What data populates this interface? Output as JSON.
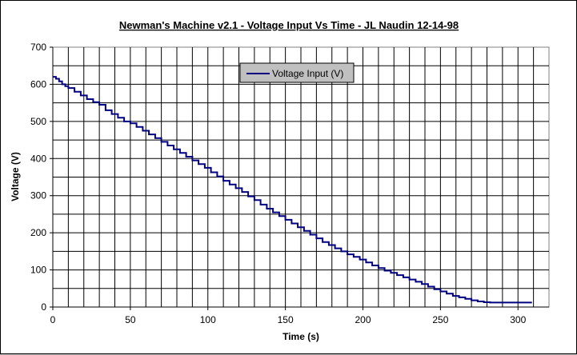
{
  "chart_data": {
    "type": "line",
    "title": "Newman's Machine v2.1 - Voltage Input Vs Time - JL Naudin      12-14-98",
    "xlabel": "Time (s)",
    "ylabel": "Voltage (V)",
    "xlim": [
      0,
      320
    ],
    "ylim": [
      0,
      700
    ],
    "x_major_ticks": [
      0,
      50,
      100,
      150,
      200,
      250,
      300
    ],
    "x_minor_step": 10,
    "y_ticks": [
      0,
      100,
      200,
      300,
      400,
      500,
      600,
      700
    ],
    "y_minor_step": 50,
    "grid": true,
    "legend_position": "top-center",
    "series": [
      {
        "name": "Voltage Input (V)",
        "color": "#000080",
        "x": [
          0,
          2,
          4,
          6,
          8,
          10,
          14,
          18,
          22,
          26,
          30,
          34,
          38,
          42,
          46,
          50,
          54,
          58,
          62,
          66,
          70,
          74,
          78,
          82,
          86,
          90,
          94,
          98,
          102,
          106,
          110,
          114,
          118,
          122,
          126,
          130,
          134,
          138,
          142,
          146,
          150,
          154,
          158,
          162,
          166,
          170,
          174,
          178,
          182,
          186,
          190,
          194,
          198,
          202,
          206,
          210,
          214,
          218,
          222,
          226,
          230,
          234,
          238,
          242,
          246,
          250,
          254,
          258,
          262,
          266,
          270,
          274,
          278,
          282,
          286,
          290,
          294,
          298,
          302,
          306,
          309
        ],
        "y": [
          620,
          615,
          608,
          600,
          595,
          590,
          580,
          570,
          560,
          552,
          545,
          530,
          520,
          510,
          500,
          495,
          485,
          475,
          465,
          455,
          445,
          435,
          425,
          415,
          405,
          395,
          385,
          375,
          363,
          352,
          340,
          330,
          320,
          310,
          298,
          288,
          276,
          265,
          255,
          245,
          235,
          225,
          215,
          205,
          195,
          185,
          175,
          167,
          158,
          150,
          142,
          135,
          128,
          120,
          112,
          105,
          98,
          92,
          86,
          80,
          74,
          68,
          62,
          55,
          48,
          42,
          36,
          30,
          26,
          22,
          18,
          15,
          13,
          12,
          12,
          12,
          12,
          12,
          12,
          12,
          12
        ]
      }
    ]
  }
}
